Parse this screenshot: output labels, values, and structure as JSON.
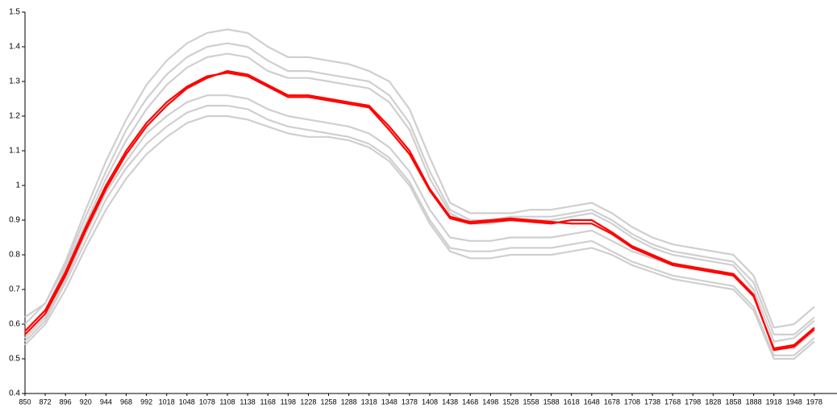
{
  "chart_data": {
    "type": "line",
    "categories": [
      850,
      872,
      896,
      920,
      944,
      968,
      992,
      1018,
      1048,
      1078,
      1108,
      1138,
      1168,
      1198,
      1228,
      1258,
      1288,
      1318,
      1348,
      1378,
      1408,
      1438,
      1468,
      1498,
      1528,
      1558,
      1588,
      1618,
      1648,
      1678,
      1708,
      1738,
      1768,
      1798,
      1828,
      1858,
      1888,
      1918,
      1948,
      1978
    ],
    "ylim": [
      0.4,
      1.5
    ],
    "yticks": [
      0.4,
      0.5,
      0.6,
      0.7,
      0.8,
      0.9,
      1,
      1.1,
      1.2,
      1.3,
      1.4,
      1.5
    ],
    "series": [
      {
        "color": "#cfcfcf",
        "values": [
          0.6,
          0.66,
          0.78,
          0.93,
          1.07,
          1.19,
          1.29,
          1.36,
          1.41,
          1.44,
          1.45,
          1.44,
          1.4,
          1.37,
          1.37,
          1.36,
          1.35,
          1.33,
          1.3,
          1.22,
          1.08,
          0.95,
          0.92,
          0.92,
          0.92,
          0.93,
          0.93,
          0.94,
          0.95,
          0.92,
          0.88,
          0.85,
          0.83,
          0.82,
          0.81,
          0.8,
          0.74,
          0.59,
          0.6,
          0.65
        ]
      },
      {
        "color": "#cfcfcf",
        "values": [
          0.62,
          0.66,
          0.77,
          0.91,
          1.04,
          1.16,
          1.25,
          1.32,
          1.37,
          1.4,
          1.41,
          1.4,
          1.36,
          1.33,
          1.33,
          1.32,
          1.31,
          1.3,
          1.26,
          1.18,
          1.04,
          0.93,
          0.9,
          0.9,
          0.91,
          0.91,
          0.91,
          0.92,
          0.93,
          0.9,
          0.86,
          0.83,
          0.81,
          0.8,
          0.79,
          0.78,
          0.72,
          0.57,
          0.57,
          0.62
        ]
      },
      {
        "color": "#cfcfcf",
        "values": [
          0.58,
          0.64,
          0.76,
          0.89,
          1.02,
          1.13,
          1.22,
          1.29,
          1.34,
          1.37,
          1.38,
          1.37,
          1.33,
          1.31,
          1.31,
          1.3,
          1.29,
          1.28,
          1.24,
          1.16,
          1.02,
          0.92,
          0.89,
          0.89,
          0.9,
          0.9,
          0.9,
          0.91,
          0.92,
          0.89,
          0.85,
          0.82,
          0.8,
          0.79,
          0.78,
          0.77,
          0.7,
          0.55,
          0.56,
          0.61
        ]
      },
      {
        "color": "#cfcfcf",
        "values": [
          0.56,
          0.62,
          0.73,
          0.86,
          0.98,
          1.07,
          1.15,
          1.2,
          1.24,
          1.26,
          1.26,
          1.25,
          1.22,
          1.2,
          1.19,
          1.18,
          1.17,
          1.15,
          1.11,
          1.04,
          0.93,
          0.85,
          0.84,
          0.84,
          0.85,
          0.85,
          0.85,
          0.86,
          0.87,
          0.84,
          0.81,
          0.79,
          0.77,
          0.76,
          0.75,
          0.74,
          0.68,
          0.53,
          0.53,
          0.58
        ]
      },
      {
        "color": "#cfcfcf",
        "values": [
          0.55,
          0.61,
          0.72,
          0.84,
          0.96,
          1.05,
          1.12,
          1.17,
          1.21,
          1.23,
          1.23,
          1.22,
          1.19,
          1.17,
          1.16,
          1.15,
          1.14,
          1.12,
          1.08,
          1.01,
          0.9,
          0.82,
          0.81,
          0.81,
          0.82,
          0.82,
          0.82,
          0.83,
          0.84,
          0.81,
          0.78,
          0.76,
          0.74,
          0.73,
          0.72,
          0.71,
          0.65,
          0.51,
          0.51,
          0.56
        ]
      },
      {
        "color": "#cfcfcf",
        "values": [
          0.54,
          0.6,
          0.7,
          0.82,
          0.93,
          1.02,
          1.09,
          1.14,
          1.18,
          1.2,
          1.2,
          1.19,
          1.17,
          1.15,
          1.14,
          1.14,
          1.13,
          1.11,
          1.07,
          1.0,
          0.89,
          0.81,
          0.79,
          0.79,
          0.8,
          0.8,
          0.8,
          0.81,
          0.82,
          0.8,
          0.77,
          0.75,
          0.73,
          0.72,
          0.71,
          0.7,
          0.64,
          0.5,
          0.5,
          0.55
        ]
      },
      {
        "color": "#ff0000",
        "values": [
          0.57,
          0.63,
          0.74,
          0.87,
          0.99,
          1.09,
          1.17,
          1.23,
          1.28,
          1.31,
          1.33,
          1.32,
          1.29,
          1.26,
          1.26,
          1.25,
          1.24,
          1.23,
          1.17,
          1.1,
          0.99,
          0.91,
          0.895,
          0.9,
          0.905,
          0.9,
          0.895,
          0.89,
          0.89,
          0.86,
          0.82,
          0.795,
          0.77,
          0.76,
          0.75,
          0.74,
          0.68,
          0.53,
          0.54,
          0.59
        ]
      },
      {
        "color": "#ff0000",
        "values": [
          0.58,
          0.64,
          0.75,
          0.88,
          1.0,
          1.1,
          1.18,
          1.24,
          1.285,
          1.315,
          1.325,
          1.315,
          1.285,
          1.255,
          1.255,
          1.245,
          1.235,
          1.225,
          1.16,
          1.09,
          0.985,
          0.905,
          0.89,
          0.895,
          0.9,
          0.895,
          0.89,
          0.9,
          0.9,
          0.865,
          0.825,
          0.8,
          0.775,
          0.765,
          0.755,
          0.745,
          0.685,
          0.525,
          0.535,
          0.585
        ]
      }
    ]
  }
}
